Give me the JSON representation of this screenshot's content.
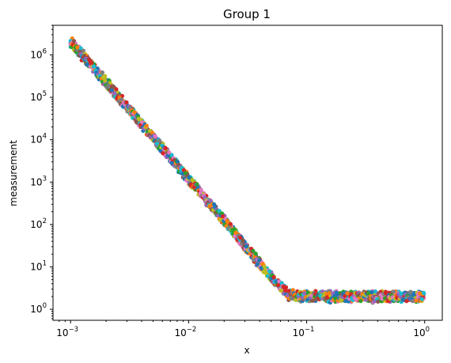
{
  "chart_data": {
    "type": "scatter",
    "title": "Group 1",
    "xlabel": "x",
    "ylabel": "measurement",
    "x_scale": "log",
    "y_scale": "log",
    "xlim": [
      0.00071,
      1.41
    ],
    "ylim": [
      0.55,
      5000000
    ],
    "x_ticks": [
      {
        "value": 0.001,
        "base": "10",
        "exp": "−3"
      },
      {
        "value": 0.01,
        "base": "10",
        "exp": "−2"
      },
      {
        "value": 0.1,
        "base": "10",
        "exp": "−1"
      },
      {
        "value": 1,
        "base": "10",
        "exp": "0"
      }
    ],
    "y_ticks": [
      {
        "value": 1,
        "base": "10",
        "exp": "0"
      },
      {
        "value": 10,
        "base": "10",
        "exp": "1"
      },
      {
        "value": 100,
        "base": "10",
        "exp": "2"
      },
      {
        "value": 1000,
        "base": "10",
        "exp": "3"
      },
      {
        "value": 10000,
        "base": "10",
        "exp": "4"
      },
      {
        "value": 100000,
        "base": "10",
        "exp": "5"
      },
      {
        "value": 1000000,
        "base": "10",
        "exp": "6"
      }
    ],
    "grid": false,
    "legend": "none",
    "colors": [
      "#1f77b4",
      "#ff7f0e",
      "#2ca02c",
      "#d62728",
      "#9467bd",
      "#8c564b",
      "#e377c2",
      "#7f7f7f",
      "#bcbd22",
      "#17becf"
    ],
    "x": [
      0.001,
      0.00122,
      0.0015,
      0.00183,
      0.00224,
      0.00274,
      0.00336,
      0.00412,
      0.00504,
      0.00617,
      0.00756,
      0.00926,
      0.01134,
      0.01389,
      0.01702,
      0.02085,
      0.02553,
      0.03128,
      0.03831,
      0.04693,
      0.05749,
      0.07042,
      0.08626,
      0.10567,
      0.12944,
      0.15855,
      0.19422,
      0.23791,
      0.29143,
      0.35699,
      0.4373,
      0.53567,
      0.65617,
      0.80378,
      1.0
    ],
    "series": [
      {
        "values": [
          2000000,
          1100000,
          580000,
          300000,
          160000,
          80000,
          42000,
          21000,
          11000,
          5800,
          2900,
          1500,
          780,
          400,
          210,
          110,
          55,
          28,
          14,
          7,
          4,
          2.3,
          2.0,
          2.1,
          1.9,
          2.0,
          2.2,
          1.8,
          2.0,
          2.1,
          1.9,
          2.0,
          2.2,
          1.9,
          2.0
        ]
      },
      {
        "values": [
          2200000,
          1000000,
          620000,
          280000,
          170000,
          76000,
          44000,
          20000,
          11500,
          5500,
          3100,
          1400,
          800,
          380,
          220,
          105,
          57,
          27,
          15,
          6.5,
          4.2,
          2.1,
          2.2,
          1.9,
          2.0,
          2.3,
          1.9,
          2.0,
          2.1,
          1.8,
          2.1,
          1.9,
          2.0,
          2.1,
          1.8
        ]
      },
      {
        "values": [
          1800000,
          1200000,
          550000,
          320000,
          150000,
          85000,
          40000,
          22000,
          10500,
          6000,
          2800,
          1600,
          750,
          420,
          200,
          115,
          52,
          29,
          13,
          7.5,
          3.8,
          2.5,
          1.9,
          2.0,
          2.2,
          1.8,
          2.0,
          2.1,
          1.9,
          2.2,
          2.0,
          2.1,
          1.9,
          2.0,
          2.2
        ]
      },
      {
        "values": [
          2100000,
          1050000,
          600000,
          290000,
          165000,
          78000,
          43000,
          20500,
          11200,
          5600,
          3000,
          1450,
          790,
          390,
          215,
          108,
          56,
          27.5,
          14.5,
          6.8,
          4.1,
          2.2,
          2.1,
          1.9,
          2.0,
          2.1,
          2.0,
          1.9,
          2.0,
          2.0,
          1.9,
          2.1,
          2.0,
          1.9,
          2.1
        ]
      }
    ]
  }
}
